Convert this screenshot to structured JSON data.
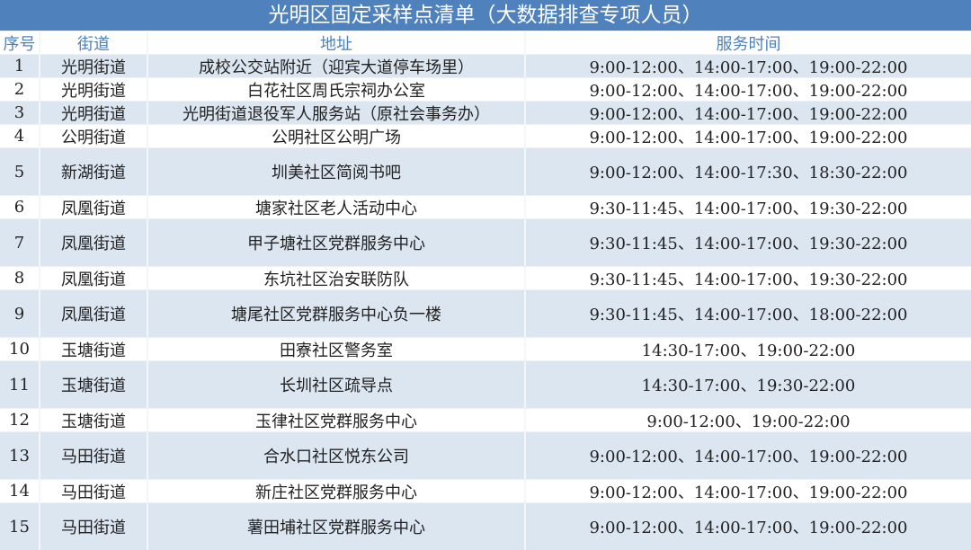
{
  "title": "光明区固定采样点清单（大数据排查专项人员）",
  "headers": [
    "序号",
    "街道",
    "地址",
    "服务时间"
  ],
  "rows": [
    {
      "no": "1",
      "street": "光明街道",
      "address": "成校公交站附近（迎宾大道停车场里）",
      "hours": "9:00-12:00、14:00-17:00、19:00-22:00"
    },
    {
      "no": "2",
      "street": "光明街道",
      "address": "白花社区周氏宗祠办公室",
      "hours": "9:00-12:00、14:00-17:00、19:00-22:00"
    },
    {
      "no": "3",
      "street": "光明街道",
      "address": "光明街道退役军人服务站（原社会事务办）",
      "hours": "9:00-12:00、14:00-17:00、19:00-22:00"
    },
    {
      "no": "4",
      "street": "公明街道",
      "address": "公明社区公明广场",
      "hours": "9:00-12:00、14:00-17:00、19:00-22:00"
    },
    {
      "no": "5",
      "street": "新湖街道",
      "address": "圳美社区简阅书吧",
      "hours": "9:00-12:00、14:00-17:30、18:30-22:00"
    },
    {
      "no": "6",
      "street": "凤凰街道",
      "address": "塘家社区老人活动中心",
      "hours": "9:30-11:45、14:00-17:00、19:30-22:00"
    },
    {
      "no": "7",
      "street": "凤凰街道",
      "address": "甲子塘社区党群服务中心",
      "hours": "9:30-11:45、14:00-17:00、19:30-22:00"
    },
    {
      "no": "8",
      "street": "凤凰街道",
      "address": "东坑社区治安联防队",
      "hours": "9:30-11:45、14:00-17:00、19:30-22:00"
    },
    {
      "no": "9",
      "street": "凤凰街道",
      "address": "塘尾社区党群服务中心负一楼",
      "hours": "9:30-11:45、14:00-17:00、18:00-22:00"
    },
    {
      "no": "10",
      "street": "玉塘街道",
      "address": "田寮社区警务室",
      "hours": "14:30-17:00、19:00-22:00"
    },
    {
      "no": "11",
      "street": "玉塘街道",
      "address": "长圳社区疏导点",
      "hours": "14:30-17:00、19:30-22:00"
    },
    {
      "no": "12",
      "street": "玉塘街道",
      "address": "玉律社区党群服务中心",
      "hours": "9:00-12:00、19:00-22:00"
    },
    {
      "no": "13",
      "street": "马田街道",
      "address": "合水口社区悦东公司",
      "hours": "9:00-12:00、14:00-17:00、19:00-22:00"
    },
    {
      "no": "14",
      "street": "马田街道",
      "address": "新庄社区党群服务中心",
      "hours": "9:00-12:00、14:00-17:00、19:00-22:00"
    },
    {
      "no": "15",
      "street": "马田街道",
      "address": "薯田埔社区党群服务中心",
      "hours": "9:00-12:00、14:00-17:00、19:00-22:00"
    }
  ],
  "colors": {
    "title_bg": "#4f81bd",
    "header_text": "#4f81bd",
    "band": "#dce6f1"
  }
}
